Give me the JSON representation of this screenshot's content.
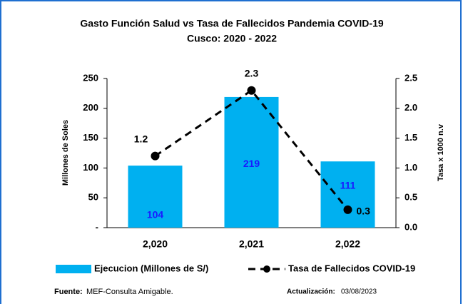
{
  "chart_data": {
    "type": "bar_line",
    "title": "Gasto Función Salud vs Tasa de Fallecidos Pandemia COVID-19",
    "subtitle": "Cusco: 2020 - 2022",
    "y_label": "Millones de Soles",
    "y2_label": "Tasa x 1000 n.v",
    "categories": [
      "2,020",
      "2,021",
      "2,022"
    ],
    "series": [
      {
        "name": "Ejecucion (Millones de S/)",
        "type": "bar",
        "color": "#00b0f0",
        "label_color": "#1a1aff",
        "values": [
          104,
          219,
          111
        ]
      },
      {
        "name": "Tasa de Fallecidos COVID-19",
        "type": "line",
        "color": "#000000",
        "axis": "y2",
        "values": [
          1.2,
          2.3,
          0.3
        ]
      }
    ],
    "ylim": [
      0,
      250
    ],
    "yticks": [
      {
        "value": 0,
        "label": "-"
      },
      50,
      100,
      150,
      200,
      250
    ],
    "y2lim": [
      0,
      2.5
    ],
    "y2ticks": [
      {
        "value": 0,
        "label": "0.0"
      },
      0.5,
      {
        "value": 1,
        "label": "1.0"
      },
      1.5,
      {
        "value": 2,
        "label": "2.0"
      },
      2.5
    ],
    "legend": "bottom",
    "source_label": "Fuente:",
    "source": "MEF-Consulta Amigable.",
    "update_label": "Actualización:",
    "update": "03/08/2023"
  }
}
